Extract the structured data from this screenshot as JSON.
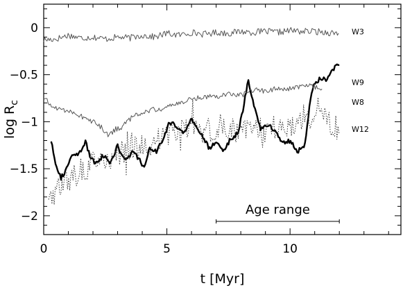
{
  "chart_data": {
    "type": "line",
    "xlabel": "t [Myr]",
    "ylabel": "log R",
    "ylabel_sub": "c",
    "xlim": [
      0,
      14.5
    ],
    "ylim": [
      -2.2,
      0.25
    ],
    "xticks": [
      0,
      5,
      10
    ],
    "xtick_labels": [
      "0",
      "5",
      "10"
    ],
    "yticks": [
      0,
      -0.5,
      -1,
      -1.5,
      -2
    ],
    "ytick_labels": [
      "0",
      "−0.5",
      "−1",
      "−1.5",
      "−2"
    ],
    "grid": false,
    "annotations": [
      {
        "text": "Age range",
        "x": 9.5,
        "y": -1.98,
        "range": [
          7,
          12
        ],
        "range_y": -2.06
      }
    ],
    "series": [
      {
        "name": "W3",
        "style": "thin",
        "color": "#555555",
        "label_at": [
          12.5,
          -0.04
        ],
        "x": [
          0,
          0.5,
          1,
          1.5,
          2,
          2.5,
          3,
          3.5,
          4,
          4.5,
          5,
          5.5,
          6,
          6.5,
          7,
          7.5,
          8,
          8.5,
          9,
          9.5,
          10,
          10.5,
          11,
          11.5,
          12
        ],
        "y": [
          -0.13,
          -0.12,
          -0.08,
          -0.11,
          -0.1,
          -0.12,
          -0.1,
          -0.11,
          -0.08,
          -0.1,
          -0.06,
          -0.08,
          -0.05,
          -0.07,
          -0.05,
          -0.06,
          -0.04,
          -0.05,
          -0.04,
          -0.05,
          -0.03,
          -0.04,
          -0.04,
          -0.05,
          -0.06
        ],
        "noise": 0.035
      },
      {
        "name": "W9",
        "style": "thick",
        "color": "#000000",
        "label_at": [
          12.5,
          -0.58
        ],
        "x": [
          0.3,
          0.5,
          0.7,
          0.9,
          1.1,
          1.4,
          1.7,
          1.9,
          2.1,
          2.4,
          2.7,
          3.0,
          3.3,
          3.6,
          3.9,
          4.1,
          4.3,
          4.6,
          4.9,
          5.1,
          5.4,
          5.7,
          6.0,
          6.4,
          6.7,
          7.0,
          7.3,
          7.6,
          7.9,
          8.1,
          8.3,
          8.5,
          8.8,
          9.1,
          9.4,
          9.7,
          10.0,
          10.3,
          10.6,
          10.8,
          11.0,
          11.2,
          11.5,
          11.8,
          12.0
        ],
        "y": [
          -1.2,
          -1.45,
          -1.6,
          -1.52,
          -1.38,
          -1.35,
          -1.22,
          -1.38,
          -1.45,
          -1.36,
          -1.43,
          -1.26,
          -1.42,
          -1.32,
          -1.4,
          -1.5,
          -1.28,
          -1.32,
          -1.15,
          -1.0,
          -1.05,
          -1.12,
          -0.98,
          -1.13,
          -1.28,
          -1.22,
          -1.3,
          -1.18,
          -1.12,
          -0.85,
          -0.55,
          -0.78,
          -1.08,
          -1.03,
          -1.1,
          -1.22,
          -1.2,
          -1.32,
          -1.25,
          -0.8,
          -0.58,
          -0.55,
          -0.55,
          -0.42,
          -0.4
        ],
        "noise": 0.025
      },
      {
        "name": "W8",
        "style": "thin",
        "color": "#555555",
        "label_at": [
          12.5,
          -0.79
        ],
        "x": [
          0,
          0.4,
          0.8,
          1.2,
          1.6,
          2.0,
          2.3,
          2.6,
          2.9,
          3.2,
          3.6,
          4.0,
          4.5,
          5.0,
          5.5,
          6.0,
          6.5,
          7.0,
          7.5,
          8.0,
          8.5,
          9.0,
          9.5,
          10.0,
          10.5,
          11.0,
          11.3
        ],
        "y": [
          -0.75,
          -0.85,
          -0.87,
          -0.9,
          -0.95,
          -1.0,
          -1.05,
          -1.15,
          -1.08,
          -1.05,
          -0.95,
          -0.9,
          -0.87,
          -0.85,
          -0.8,
          -0.76,
          -0.73,
          -0.73,
          -0.7,
          -0.72,
          -0.66,
          -0.67,
          -0.65,
          -0.65,
          -0.62,
          -0.63,
          -0.64
        ],
        "noise": 0.03
      },
      {
        "name": "W12",
        "style": "dotted",
        "color": "#333333",
        "label_at": [
          12.5,
          -1.08
        ],
        "x": [
          0.2,
          0.5,
          0.8,
          1.1,
          1.4,
          1.7,
          2.0,
          2.3,
          2.6,
          3.0,
          3.4,
          3.8,
          4.2,
          4.6,
          5.0,
          5.4,
          5.8,
          6.2,
          6.6,
          7.0,
          7.4,
          7.8,
          8.2,
          8.6,
          9.0,
          9.4,
          9.8,
          10.2,
          10.6,
          11.0,
          11.4,
          11.8,
          12.0
        ],
        "y": [
          -1.8,
          -1.72,
          -1.66,
          -1.62,
          -1.55,
          -1.5,
          -1.45,
          -1.42,
          -1.45,
          -1.35,
          -1.3,
          -1.28,
          -1.25,
          -1.2,
          -1.15,
          -1.1,
          -1.1,
          -1.05,
          -1.08,
          -1.1,
          -1.05,
          -1.1,
          -1.05,
          -1.08,
          -1.1,
          -1.05,
          -1.05,
          -1.05,
          -1.0,
          -0.98,
          -0.98,
          -1.05,
          -1.1
        ],
        "noise": 0.13
      }
    ]
  }
}
